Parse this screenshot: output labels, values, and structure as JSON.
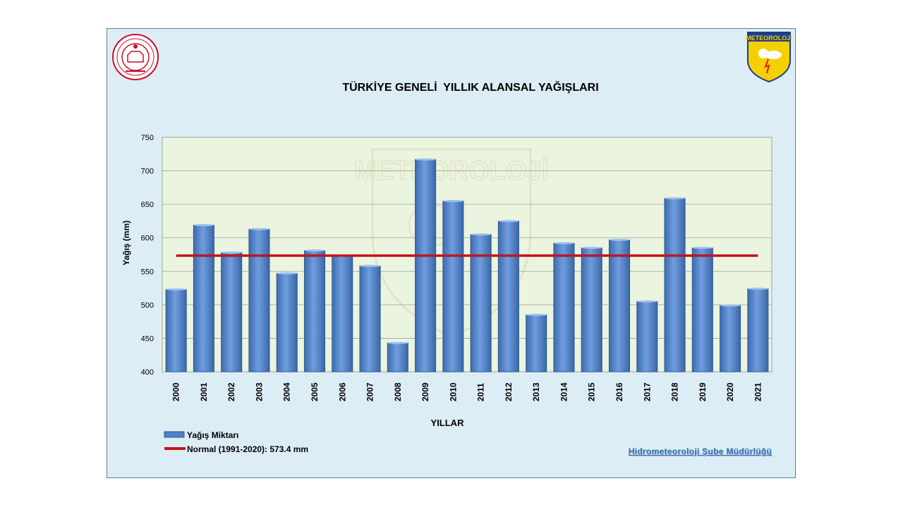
{
  "chart_data": {
    "type": "bar",
    "title": "TÜRKİYE GENELİ  YILLIK ALANSAL YAĞIŞLARI",
    "xlabel": "YILLAR",
    "ylabel": "Yağış (mm)",
    "ylim": [
      400,
      750
    ],
    "yticks": [
      400,
      450,
      500,
      550,
      600,
      650,
      700,
      750
    ],
    "grid": true,
    "legend_position": "bottom-left",
    "categories": [
      "2000",
      "2001",
      "2002",
      "2003",
      "2004",
      "2005",
      "2006",
      "2007",
      "2008",
      "2009",
      "2010",
      "2011",
      "2012",
      "2013",
      "2014",
      "2015",
      "2016",
      "2017",
      "2018",
      "2019",
      "2020",
      "2021"
    ],
    "series": [
      {
        "name": "Yağış Miktarı",
        "type": "bar",
        "color": "#4f81c7",
        "values": [
          523,
          619,
          578,
          613,
          547,
          581,
          573,
          558,
          443,
          717,
          655,
          605,
          625,
          485,
          592,
          585,
          597,
          505,
          659,
          585,
          499,
          524
        ]
      },
      {
        "name": "Normal (1991-2020): 573.4 mm",
        "type": "line",
        "color": "#c0141e",
        "value": 573.4
      }
    ]
  },
  "footer": {
    "credit": "Hidrometeoroloji Şube Müdürlüğü"
  },
  "logos": {
    "left": {
      "icon": "ministry-seal-icon",
      "color": "#c8102e"
    },
    "right": {
      "icon": "meteoroloji-shield-icon",
      "text": "METEOROLOJi"
    },
    "watermark": {
      "icon": "meteoroloji-watermark-icon",
      "text": "METEOROLOJİ"
    }
  }
}
